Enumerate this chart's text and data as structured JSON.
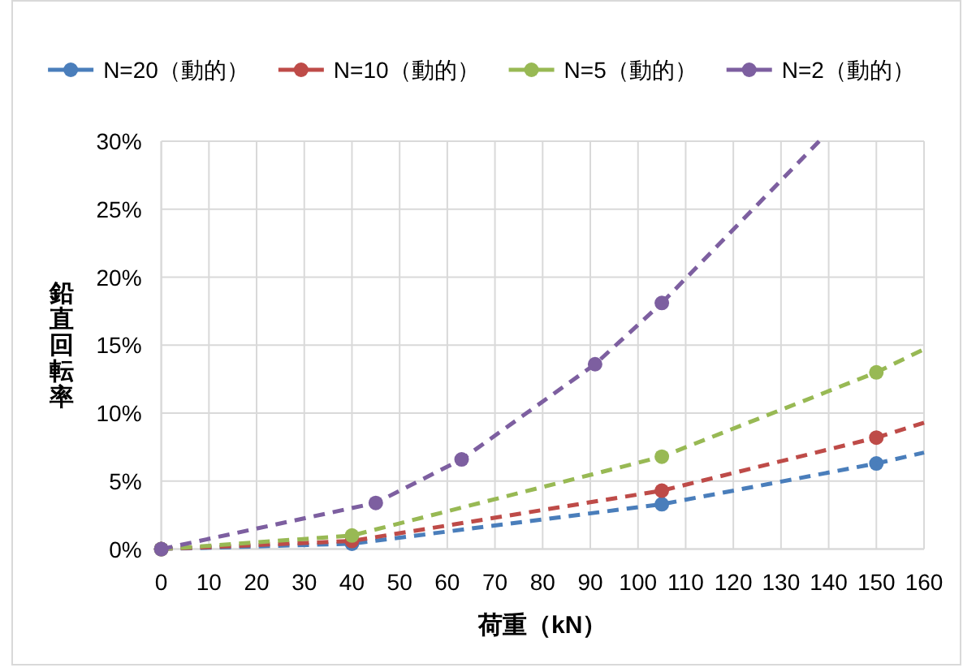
{
  "chart_data": {
    "type": "line",
    "xlabel": "荷重（kN）",
    "ylabel": "鉛直回転率",
    "xlim": [
      0,
      160
    ],
    "xticks": [
      0,
      10,
      20,
      30,
      40,
      50,
      60,
      70,
      80,
      90,
      100,
      110,
      120,
      130,
      140,
      150,
      160
    ],
    "ylim": [
      0,
      30
    ],
    "yticks": [
      {
        "value": 0,
        "label": "0%"
      },
      {
        "value": 5,
        "label": "5%"
      },
      {
        "value": 10,
        "label": "10%"
      },
      {
        "value": 15,
        "label": "15%"
      },
      {
        "value": 20,
        "label": "20%"
      },
      {
        "value": 25,
        "label": "25%"
      },
      {
        "value": 30,
        "label": "30%"
      }
    ],
    "grid": true,
    "legend": "top",
    "marker": "circle",
    "line_style": "dashed",
    "series": [
      {
        "name": "N=20（動的）",
        "color": "#4a7ebb",
        "x": [
          0,
          40,
          105,
          150
        ],
        "values": [
          0,
          0.4,
          3.3,
          6.3
        ]
      },
      {
        "name": "N=10（動的）",
        "color": "#be4b48",
        "x": [
          0,
          40,
          105,
          150
        ],
        "values": [
          0,
          0.6,
          4.3,
          8.2
        ]
      },
      {
        "name": "N=5（動的）",
        "color": "#98b954",
        "x": [
          0,
          40,
          105,
          150
        ],
        "values": [
          0,
          1.0,
          6.8,
          13.0
        ]
      },
      {
        "name": "N=2（動的）",
        "color": "#7d5fa0",
        "x": [
          0,
          45,
          63,
          91,
          105
        ],
        "values": [
          0,
          3.4,
          6.6,
          13.6,
          18.1
        ]
      },
      {
        "type": "line",
        "marker": "none",
        "color": "#4a7ebb",
        "x": [
          150,
          160
        ],
        "values": [
          6.3,
          7.1
        ]
      },
      {
        "type": "line",
        "marker": "none",
        "color": "#be4b48",
        "x": [
          150,
          160
        ],
        "values": [
          8.2,
          9.3
        ]
      },
      {
        "type": "line",
        "marker": "none",
        "color": "#98b954",
        "x": [
          150,
          160
        ],
        "values": [
          13.0,
          14.7
        ]
      },
      {
        "type": "line",
        "marker": "none",
        "color": "#7d5fa0",
        "x": [
          105,
          138
        ],
        "values": [
          18.1,
          30
        ]
      }
    ]
  }
}
